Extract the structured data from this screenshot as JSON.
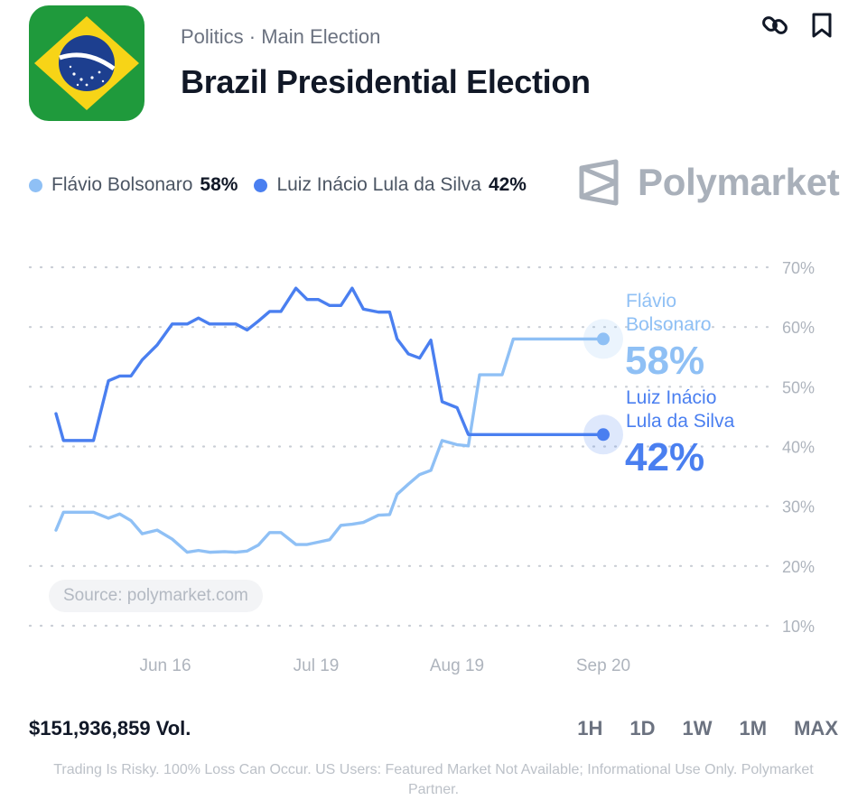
{
  "header": {
    "category": "Politics · Main Election",
    "title": "Brazil Presidential Election",
    "flag_icon": "brazil-flag-icon",
    "actions": {
      "link_icon": "link-icon",
      "bookmark_icon": "bookmark-icon"
    }
  },
  "legend": [
    {
      "name": "Flávio Bolsonaro",
      "value": "58%",
      "color": "#8fc0f5"
    },
    {
      "name": "Luiz Inácio Lula da Silva",
      "value": "42%",
      "color": "#4a7ff0"
    }
  ],
  "brand": {
    "name": "Polymarket",
    "icon": "polymarket-logo-icon"
  },
  "source": "Source: polymarket.com",
  "chart_data": {
    "type": "line",
    "x_ticks": [
      "Jun 16",
      "Jul 19",
      "Aug 19",
      "Sep 20"
    ],
    "y_ticks": [
      "70%",
      "60%",
      "50%",
      "40%",
      "30%",
      "20%",
      "10%"
    ],
    "ylim": [
      10,
      70
    ],
    "grid": true,
    "series": [
      {
        "name": "Flávio Bolsonaro",
        "end_label": [
          "Flávio",
          "Bolsonaro"
        ],
        "end_value": "58%",
        "color": "#8fc0f5",
        "x": [
          0,
          2,
          4,
          7,
          10,
          14,
          17,
          20,
          23,
          27,
          31,
          35,
          38,
          41,
          45,
          48,
          51,
          54,
          57,
          60,
          64,
          67,
          70,
          73,
          76,
          79,
          82,
          86,
          89,
          91,
          94,
          97,
          100,
          103,
          107,
          110,
          113,
          116,
          119,
          122,
          126,
          128,
          130,
          134,
          137,
          140,
          143,
          146
        ],
        "y": [
          26,
          29,
          29,
          29,
          29,
          28,
          28.7,
          27.6,
          25.4,
          26,
          24.5,
          22.3,
          22.6,
          22.3,
          22.4,
          22.3,
          22.5,
          23.5,
          25.6,
          25.6,
          23.6,
          23.6,
          24,
          24.4,
          26.8,
          27,
          27.3,
          28.5,
          28.6,
          32,
          33.7,
          35.3,
          36,
          41,
          40.3,
          40.1,
          52,
          52,
          52,
          58,
          58,
          58,
          58,
          58,
          58,
          58,
          58,
          58
        ]
      },
      {
        "name": "Luiz Inácio Lula da Silva",
        "end_label": [
          "Luiz Inácio",
          "Lula da Silva"
        ],
        "end_value": "42%",
        "color": "#4a7ff0",
        "x": [
          0,
          2,
          4,
          7,
          10,
          14,
          17,
          20,
          23,
          27,
          31,
          35,
          38,
          41,
          45,
          48,
          51,
          54,
          57,
          60,
          64,
          67,
          70,
          73,
          76,
          79,
          82,
          86,
          89,
          91,
          94,
          97,
          100,
          103,
          107,
          110,
          113,
          116,
          119,
          122,
          126,
          128,
          130,
          134,
          137,
          140,
          143,
          146
        ],
        "y": [
          45.5,
          41,
          41,
          41,
          41,
          51,
          51.8,
          51.8,
          54.5,
          57,
          60.5,
          60.5,
          61.5,
          60.5,
          60.5,
          60.5,
          59.5,
          61,
          62.6,
          62.6,
          66.5,
          64.6,
          64.6,
          63.6,
          63.6,
          66.5,
          63,
          62.5,
          62.5,
          58,
          55.5,
          54.8,
          57.8,
          47.5,
          46.5,
          42,
          42,
          42,
          42,
          42,
          42,
          42,
          42,
          42,
          42,
          42,
          42,
          42
        ]
      }
    ]
  },
  "volume": "$151,936,859 Vol.",
  "ranges": [
    "1H",
    "1D",
    "1W",
    "1M",
    "MAX"
  ],
  "disclaimer": "Trading Is Risky. 100% Loss Can Occur. US Users: Featured Market Not Available; Informational Use Only. Polymarket Partner."
}
